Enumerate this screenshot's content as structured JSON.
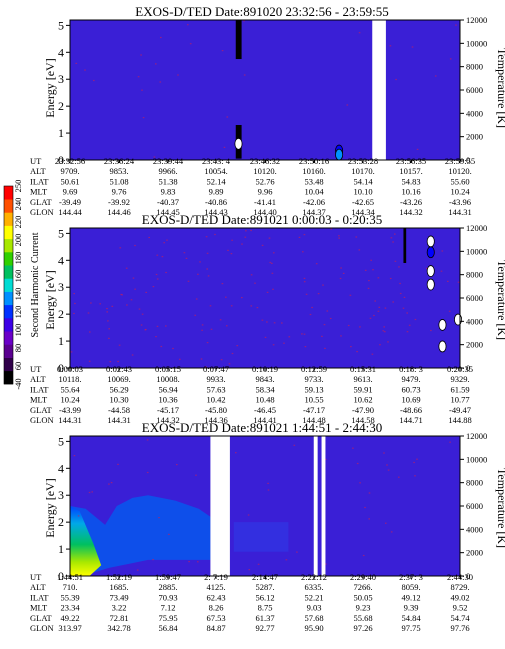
{
  "chart_data": [
    {
      "type": "heatmap",
      "title": "EXOS-D/TED   Date:891020  23:32:56 - 23:59:55",
      "ylabel": "Energy [eV]",
      "ylabel_right": "Temperature [K]",
      "ylim": [
        0,
        5.2
      ],
      "yticks": [
        "0",
        "1",
        "2",
        "3",
        "4",
        "5"
      ],
      "ylim_right": [
        0,
        12000
      ],
      "yticks_right": [
        "0",
        "2000",
        "4000",
        "6000",
        "8000",
        "10000",
        "12000"
      ],
      "data_gaps": [
        [
          0.775,
          0.81
        ]
      ],
      "features": [
        {
          "kind": "column",
          "x": [
            0.425,
            0.44
          ],
          "y": [
            3.75,
            5.2
          ],
          "color": "#000000"
        },
        {
          "kind": "column",
          "x": [
            0.425,
            0.44
          ],
          "y": [
            0.05,
            1.3
          ],
          "color": "#000000"
        },
        {
          "kind": "blob",
          "x": 0.432,
          "y": 0.6,
          "color": "#ffffff"
        },
        {
          "kind": "blob",
          "x": 0.69,
          "y": 0.35,
          "color": "#0000ff"
        },
        {
          "kind": "blob",
          "x": 0.69,
          "y": 0.2,
          "color": "#0090ff"
        }
      ],
      "orbit": {
        "labels": [
          "UT",
          "ALT",
          "ILAT",
          "MLT",
          "GLAT",
          "GLON"
        ],
        "columns": [
          [
            "23:32:56",
            "9709.",
            "50.61",
            "9.69",
            "-39.49",
            "144.44"
          ],
          [
            "23:36:24",
            "9853.",
            "51.08",
            "9.76",
            "-39.92",
            "144.46"
          ],
          [
            "23:39:44",
            "9966.",
            "51.38",
            "9.83",
            "-40.37",
            "144.45"
          ],
          [
            "23:43: 4",
            "10054.",
            "52.14",
            "9.89",
            "-40.86",
            "144.43"
          ],
          [
            "23:46:32",
            "10120.",
            "52.76",
            "9.96",
            "-41.41",
            "144.40"
          ],
          [
            "23:50:16",
            "10160.",
            "53.48",
            "10.04",
            "-42.06",
            "144.37"
          ],
          [
            "23:53:28",
            "10170.",
            "54.14",
            "10.10",
            "-42.65",
            "144.34"
          ],
          [
            "23:56:35",
            "10157.",
            "54.83",
            "10.16",
            "-43.26",
            "144.32"
          ],
          [
            "23:59:55",
            "10120.",
            "55.60",
            "10.24",
            "-43.96",
            "144.31"
          ]
        ]
      }
    },
    {
      "type": "heatmap",
      "title": "EXOS-D/TED   Date:891021  0:00:03 - 0:20:35",
      "ylabel": "Energy [eV]",
      "ylabel_right": "Temperature [K]",
      "ylim": [
        0,
        5.2
      ],
      "yticks": [
        "0",
        "1",
        "2",
        "3",
        "4",
        "5"
      ],
      "ylim_right": [
        0,
        12000
      ],
      "yticks_right": [
        "0",
        "2000",
        "4000",
        "6000",
        "8000",
        "10000",
        "12000"
      ],
      "data_gaps": [],
      "features": [
        {
          "kind": "column",
          "x": [
            0.855,
            0.862
          ],
          "y": [
            3.9,
            5.2
          ],
          "color": "#000000"
        },
        {
          "kind": "blob",
          "x": 0.925,
          "y": 4.7,
          "color": "#ffffff"
        },
        {
          "kind": "blob",
          "x": 0.925,
          "y": 4.3,
          "color": "#0000ff"
        },
        {
          "kind": "blob",
          "x": 0.925,
          "y": 3.6,
          "color": "#ffffff"
        },
        {
          "kind": "blob",
          "x": 0.925,
          "y": 3.1,
          "color": "#ffffff"
        },
        {
          "kind": "blob",
          "x": 0.955,
          "y": 1.6,
          "color": "#ffffff"
        },
        {
          "kind": "blob",
          "x": 0.955,
          "y": 0.8,
          "color": "#ffffff"
        },
        {
          "kind": "blob",
          "x": 0.995,
          "y": 1.8,
          "color": "#ffffff"
        }
      ],
      "orbit": {
        "labels": [
          "UT",
          "ALT",
          "ILAT",
          "MLT",
          "GLAT",
          "GLON"
        ],
        "columns": [
          [
            "0:00:03",
            "10118.",
            "55.64",
            "10.24",
            "-43.99",
            "144.31"
          ],
          [
            "0:02:43",
            "10069.",
            "56.29",
            "10.30",
            "-44.58",
            "144.31"
          ],
          [
            "0:05:15",
            "10008.",
            "56.94",
            "10.36",
            "-45.17",
            "144.32"
          ],
          [
            "0:07:47",
            "9933.",
            "57.63",
            "10.42",
            "-45.80",
            "144.36"
          ],
          [
            "0:10:19",
            "9843.",
            "58.34",
            "10.48",
            "-46.45",
            "144.41"
          ],
          [
            "0:12:59",
            "9733.",
            "59.13",
            "10.55",
            "-47.17",
            "144.48"
          ],
          [
            "0:15:31",
            "9613.",
            "59.91",
            "10.62",
            "-47.90",
            "144.58"
          ],
          [
            "0:18: 3",
            "9479.",
            "60.73",
            "10.69",
            "-48.66",
            "144.71"
          ],
          [
            "0:20:35",
            "9329.",
            "61.59",
            "10.77",
            "-49.47",
            "144.88"
          ]
        ]
      }
    },
    {
      "type": "heatmap",
      "title": "EXOS-D/TED   Date:891021  1:44:51 - 2:44:30",
      "ylabel": "Energy [eV]",
      "ylabel_right": "Temperature [K]",
      "ylim": [
        0,
        5.2
      ],
      "yticks": [
        "0",
        "1",
        "2",
        "3",
        "4",
        "5"
      ],
      "ylim_right": [
        0,
        12000
      ],
      "yticks_right": [
        "0",
        "2000",
        "4000",
        "6000",
        "8000",
        "10000",
        "12000"
      ],
      "data_gaps": [
        [
          0.36,
          0.41
        ],
        [
          0.625,
          0.635
        ],
        [
          0.645,
          0.655
        ]
      ],
      "orbit": {
        "labels": [
          "UT",
          "ALT",
          "ILAT",
          "MLT",
          "GLAT",
          "GLON"
        ],
        "columns": [
          [
            "1:44:51",
            "710.",
            "55.39",
            "23.34",
            "49.22",
            "313.97"
          ],
          [
            "1:52:19",
            "1685.",
            "73.49",
            "3.22",
            "72.81",
            "342.78"
          ],
          [
            "1:59:47",
            "2885.",
            "70.93",
            "7.12",
            "75.95",
            "56.84"
          ],
          [
            "2: 7:19",
            "4125.",
            "62.43",
            "8.26",
            "67.53",
            "84.87"
          ],
          [
            "2:14:47",
            "5287.",
            "56.12",
            "8.75",
            "61.37",
            "92.77"
          ],
          [
            "2:22:12",
            "6335.",
            "52.21",
            "9.03",
            "57.68",
            "95.90"
          ],
          [
            "2:29:40",
            "7266.",
            "50.05",
            "9.23",
            "55.68",
            "97.26"
          ],
          [
            "2:37: 3",
            "8059.",
            "49.12",
            "9.39",
            "54.84",
            "97.75"
          ],
          [
            "2:44:30",
            "8729.",
            "49.02",
            "9.52",
            "54.74",
            "97.76"
          ]
        ]
      }
    }
  ],
  "colorbar": {
    "label": "Second Harmonic Current",
    "ticks": [
      "-40",
      "60",
      "80",
      "100",
      "120",
      "140",
      "160",
      "180",
      "200",
      "220",
      "240",
      "250"
    ],
    "colors": [
      "#000000",
      "#30004a",
      "#5a0090",
      "#6a00c8",
      "#3c00e6",
      "#0030ff",
      "#0090ff",
      "#00dcd4",
      "#00c060",
      "#30d000",
      "#a8e800",
      "#ffff00",
      "#ffb000",
      "#ff5000",
      "#ff0000"
    ]
  },
  "colors": {
    "background": "#3a1fd6",
    "gap": "#ffffff",
    "speckle": "#c02060"
  }
}
